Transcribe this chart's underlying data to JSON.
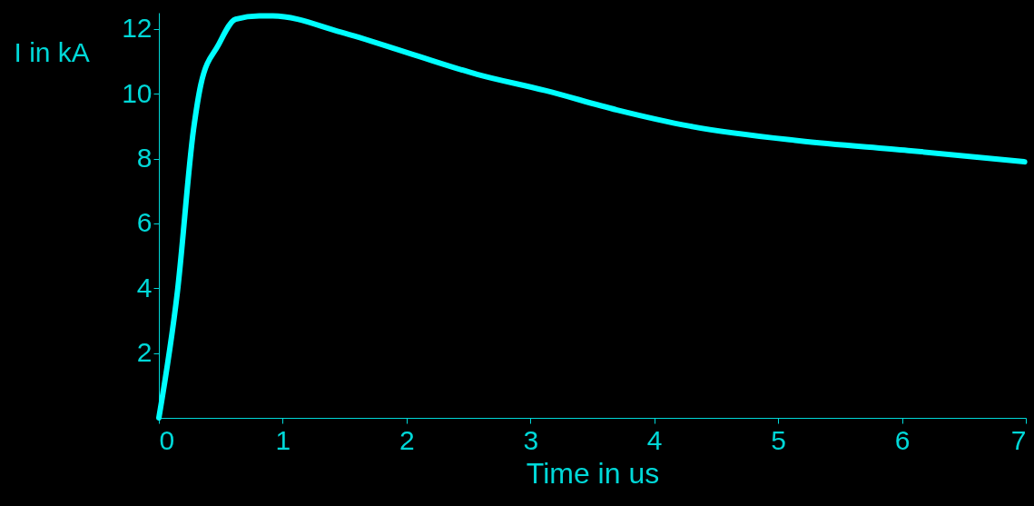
{
  "chart_data": {
    "type": "line",
    "xlabel": "Time in us",
    "ylabel": "I in kA",
    "xlim": [
      0,
      7
    ],
    "ylim": [
      0,
      12.5
    ],
    "xticks": [
      0,
      1,
      2,
      3,
      4,
      5,
      6,
      7
    ],
    "yticks": [
      2,
      4,
      6,
      8,
      10,
      12
    ],
    "grid": false,
    "marker": "none",
    "line_style": "solid",
    "series": [
      {
        "color": "#00ffff",
        "x": [
          0,
          0.15,
          0.28,
          0.34,
          0.48,
          0.62,
          0.81,
          0.92,
          1.47,
          2.02,
          2.57,
          3.12,
          3.7,
          4.29,
          5.17,
          6.05,
          6.99
        ],
        "values": [
          0,
          3.9,
          8.9,
          10.3,
          11.5,
          12.3,
          12.4,
          12.4,
          11.9,
          11.25,
          10.6,
          10.1,
          9.5,
          9.0,
          8.55,
          8.25,
          7.9
        ]
      }
    ]
  }
}
